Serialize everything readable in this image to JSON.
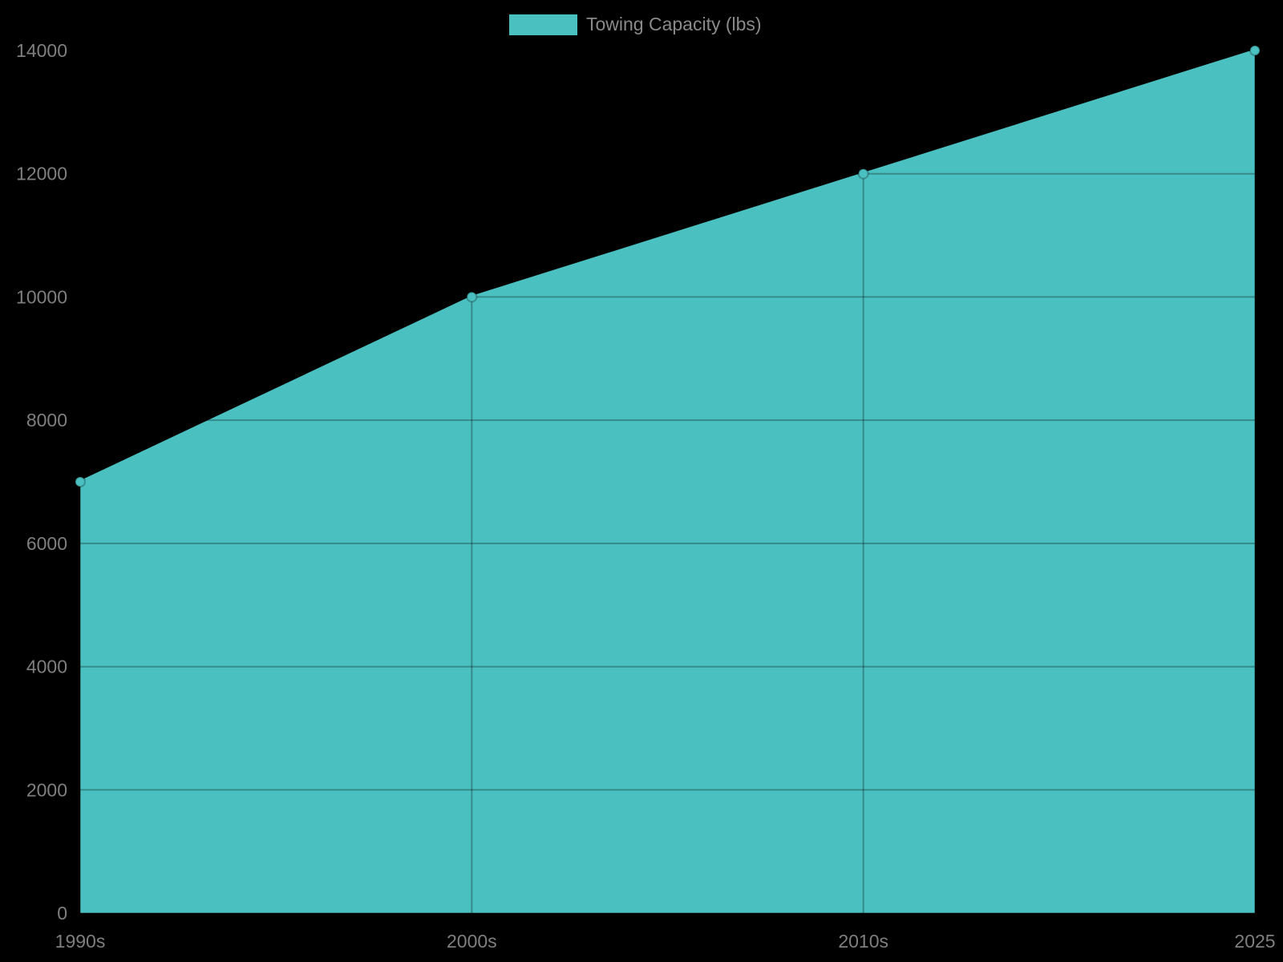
{
  "legend": {
    "label": "Towing Capacity (lbs)",
    "swatch_color": "#4bc0c0"
  },
  "chart_data": {
    "type": "area",
    "categories": [
      "1990s",
      "2000s",
      "2010s",
      "2025"
    ],
    "series": [
      {
        "name": "Towing Capacity (lbs)",
        "values": [
          7000,
          10000,
          12000,
          14000
        ]
      }
    ],
    "title": "",
    "xlabel": "",
    "ylabel": "",
    "ylim": [
      0,
      14000
    ],
    "ytick_step": 2000,
    "ytick_labels": [
      "0",
      "2000",
      "4000",
      "6000",
      "8000",
      "10000",
      "12000",
      "14000"
    ],
    "grid": true,
    "legend_position": "top",
    "colors": {
      "fill": "#4bc0c0",
      "line": "#4bc0c0",
      "point_fill": "#4bc0c0",
      "point_stroke": "rgba(0,0,0,0.25)",
      "grid": "rgba(0,0,0,0.28)",
      "tick_text": "#7f7f7f",
      "legend_text": "#8a8a8a",
      "background": "#000000"
    }
  }
}
